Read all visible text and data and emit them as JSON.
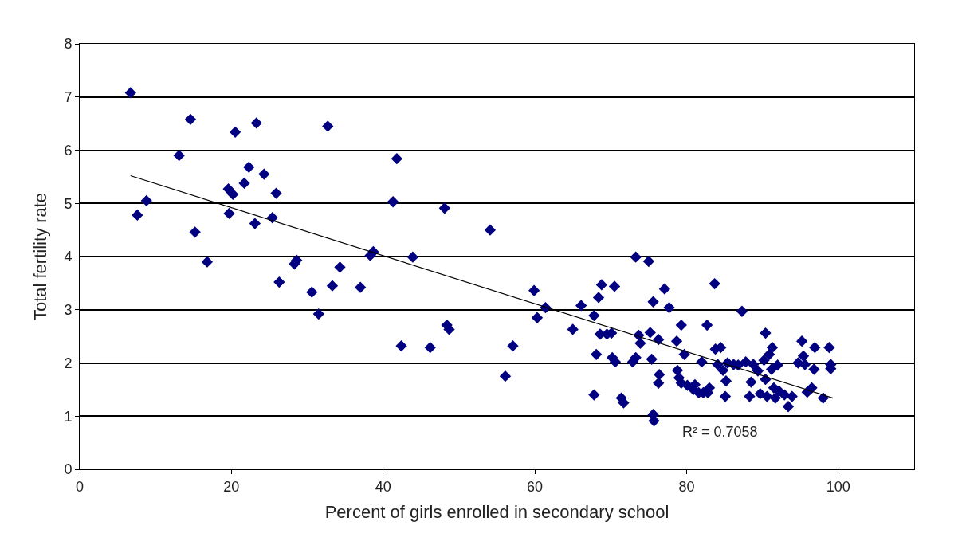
{
  "chart_data": {
    "type": "scatter",
    "xlabel": "Percent of girls enrolled in secondary school",
    "ylabel": "Total fertility rate",
    "xlim": [
      0,
      110
    ],
    "xticks": [
      0,
      20,
      40,
      60,
      80,
      100
    ],
    "ylim": [
      0,
      8
    ],
    "yticks": [
      0,
      1,
      2,
      3,
      4,
      5,
      6,
      7,
      8
    ],
    "grid": "y",
    "annotations": [
      "R² = 0.7058"
    ],
    "series": [
      {
        "marker": "diamond",
        "color": "#000080",
        "x": [
          6.7,
          7.6,
          8.8,
          13.1,
          14.6,
          15.2,
          16.8,
          19.6,
          19.7,
          20.2,
          20.5,
          21.7,
          22.3,
          23.1,
          23.3,
          24.3,
          25.4,
          25.9,
          26.3,
          28.3,
          28.6,
          30.6,
          31.5,
          32.7,
          33.3,
          34.3,
          37.0,
          38.3,
          38.7,
          41.3,
          41.8,
          42.4,
          43.9,
          46.2,
          48.1,
          48.4,
          48.7,
          54.1,
          56.1,
          57.1,
          59.9,
          60.3,
          61.4,
          65.0,
          66.1,
          67.8,
          67.8,
          68.1,
          68.4,
          68.8,
          68.6,
          69.5,
          70.1,
          70.5,
          70.2,
          70.6,
          71.4,
          71.7,
          73.3,
          73.7,
          73.9,
          72.9,
          73.3,
          75.0,
          75.2,
          75.4,
          75.6,
          75.6,
          75.7,
          76.3,
          76.4,
          76.3,
          77.1,
          77.7,
          78.7,
          78.8,
          79.0,
          79.3,
          79.3,
          79.7,
          80.1,
          80.9,
          81.1,
          81.6,
          82.0,
          82.2,
          82.7,
          82.8,
          83.0,
          83.7,
          83.8,
          84.5,
          84.1,
          84.8,
          85.1,
          85.2,
          85.4,
          86.2,
          86.8,
          87.3,
          87.8,
          88.3,
          88.5,
          88.8,
          89.4,
          89.7,
          90.2,
          90.4,
          90.4,
          90.6,
          90.9,
          91.2,
          91.3,
          91.5,
          91.7,
          92.0,
          92.2,
          92.9,
          93.4,
          93.9,
          94.7,
          95.2,
          95.4,
          95.6,
          95.9,
          96.5,
          96.8,
          96.9,
          98.0,
          98.8,
          99.0,
          99.0
        ],
        "values": [
          7.08,
          4.78,
          5.05,
          5.9,
          6.58,
          4.46,
          3.9,
          5.27,
          4.81,
          5.17,
          6.34,
          5.38,
          5.68,
          4.62,
          6.51,
          5.55,
          4.73,
          5.19,
          3.52,
          3.86,
          3.93,
          3.33,
          2.92,
          6.45,
          3.45,
          3.8,
          3.42,
          4.02,
          4.09,
          5.03,
          5.84,
          2.32,
          3.99,
          2.29,
          4.91,
          2.71,
          2.63,
          4.5,
          1.75,
          2.32,
          3.36,
          2.85,
          3.04,
          2.63,
          3.08,
          2.89,
          1.4,
          2.16,
          3.23,
          3.47,
          2.54,
          2.54,
          2.56,
          3.44,
          2.1,
          2.02,
          1.34,
          1.25,
          3.99,
          2.52,
          2.37,
          2.02,
          2.1,
          3.91,
          2.57,
          2.07,
          3.15,
          1.03,
          0.91,
          2.44,
          1.78,
          1.62,
          3.39,
          3.04,
          2.41,
          1.86,
          1.72,
          1.62,
          2.71,
          2.16,
          1.58,
          1.5,
          1.59,
          1.44,
          2.02,
          1.44,
          2.71,
          1.44,
          1.53,
          3.49,
          2.26,
          2.29,
          1.97,
          1.86,
          1.37,
          1.66,
          2.0,
          1.97,
          1.96,
          2.97,
          2.02,
          1.37,
          1.64,
          1.97,
          1.85,
          1.42,
          2.05,
          2.56,
          1.69,
          1.37,
          2.16,
          1.88,
          2.29,
          1.53,
          1.34,
          1.96,
          1.47,
          1.4,
          1.18,
          1.37,
          2.0,
          2.41,
          2.13,
          1.97,
          1.45,
          1.53,
          1.88,
          2.29,
          1.34,
          2.29,
          1.97,
          1.89
        ]
      },
      {
        "type": "line",
        "marker": "none",
        "color": "#000000",
        "x": [
          6.7,
          99.3
        ],
        "values": [
          5.52,
          1.34
        ]
      }
    ]
  }
}
